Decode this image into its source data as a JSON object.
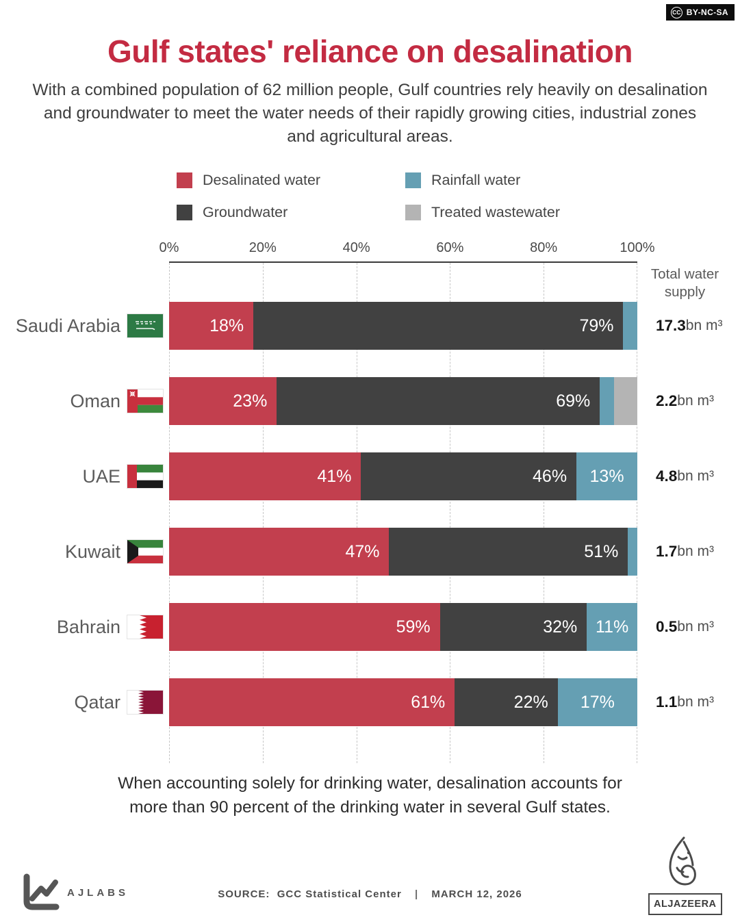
{
  "badge": {
    "cc": "CC",
    "label": "BY-NC-SA"
  },
  "header": {
    "title": "Gulf states' reliance on desalination",
    "subtitle": "With a combined population of 62 million people, Gulf countries rely heavily on desalination and groundwater to meet the water needs of their rapidly growing cities, industrial zones and agricultural areas."
  },
  "chart_data": {
    "type": "bar",
    "variant": "horizontal-stacked-percent",
    "title": "Gulf states' reliance on desalination",
    "x_ticks": [
      "0%",
      "20%",
      "40%",
      "60%",
      "80%",
      "100%"
    ],
    "xlim": [
      0,
      100
    ],
    "grid": "dashed-vertical",
    "legend_position": "top",
    "right_column_header": "Total water supply",
    "series": [
      {
        "key": "desalinated",
        "name": "Desalinated water",
        "color": "#c23f4e"
      },
      {
        "key": "groundwater",
        "name": "Groundwater",
        "color": "#414141"
      },
      {
        "key": "rainfall",
        "name": "Rainfall water",
        "color": "#659fb3"
      },
      {
        "key": "treated",
        "name": "Treated wastewater",
        "color": "#b4b4b4"
      }
    ],
    "countries": [
      {
        "name": "Saudi Arabia",
        "total_value": "17.3",
        "total_unit": "bn m³",
        "segments": [
          {
            "series": "desalinated",
            "value": 18,
            "label": "18%"
          },
          {
            "series": "groundwater",
            "value": 79,
            "label": "79%"
          },
          {
            "series": "rainfall",
            "value": 3,
            "label": ""
          }
        ]
      },
      {
        "name": "Oman",
        "total_value": "2.2",
        "total_unit": "bn m³",
        "segments": [
          {
            "series": "desalinated",
            "value": 23,
            "label": "23%"
          },
          {
            "series": "groundwater",
            "value": 69,
            "label": "69%"
          },
          {
            "series": "rainfall",
            "value": 3,
            "label": ""
          },
          {
            "series": "treated",
            "value": 5,
            "label": ""
          }
        ]
      },
      {
        "name": "UAE",
        "total_value": "4.8",
        "total_unit": "bn m³",
        "segments": [
          {
            "series": "desalinated",
            "value": 41,
            "label": "41%"
          },
          {
            "series": "groundwater",
            "value": 46,
            "label": "46%"
          },
          {
            "series": "rainfall",
            "value": 13,
            "label": "13%"
          }
        ]
      },
      {
        "name": "Kuwait",
        "total_value": "1.7",
        "total_unit": "bn m³",
        "segments": [
          {
            "series": "desalinated",
            "value": 47,
            "label": "47%"
          },
          {
            "series": "groundwater",
            "value": 51,
            "label": "51%"
          },
          {
            "series": "rainfall",
            "value": 2,
            "label": ""
          }
        ]
      },
      {
        "name": "Bahrain",
        "total_value": "0.5",
        "total_unit": "bn m³",
        "segments": [
          {
            "series": "desalinated",
            "value": 59,
            "label": "59%"
          },
          {
            "series": "groundwater",
            "value": 32,
            "label": "32%"
          },
          {
            "series": "rainfall",
            "value": 11,
            "label": "11%"
          }
        ]
      },
      {
        "name": "Qatar",
        "total_value": "1.1",
        "total_unit": "bn m³",
        "segments": [
          {
            "series": "desalinated",
            "value": 61,
            "label": "61%"
          },
          {
            "series": "groundwater",
            "value": 22,
            "label": "22%"
          },
          {
            "series": "rainfall",
            "value": 17,
            "label": "17%"
          }
        ]
      }
    ]
  },
  "footnote": "When accounting solely for drinking water, desalination accounts for more than 90 percent of the drinking water in several Gulf states.",
  "source": {
    "label": "SOURCE:",
    "value": "GCC Statistical Center",
    "sep": "|",
    "date": "MARCH 12, 2026"
  },
  "logos": {
    "ajlabs": "AJLABS",
    "aljazeera": "ALJAZEERA"
  }
}
